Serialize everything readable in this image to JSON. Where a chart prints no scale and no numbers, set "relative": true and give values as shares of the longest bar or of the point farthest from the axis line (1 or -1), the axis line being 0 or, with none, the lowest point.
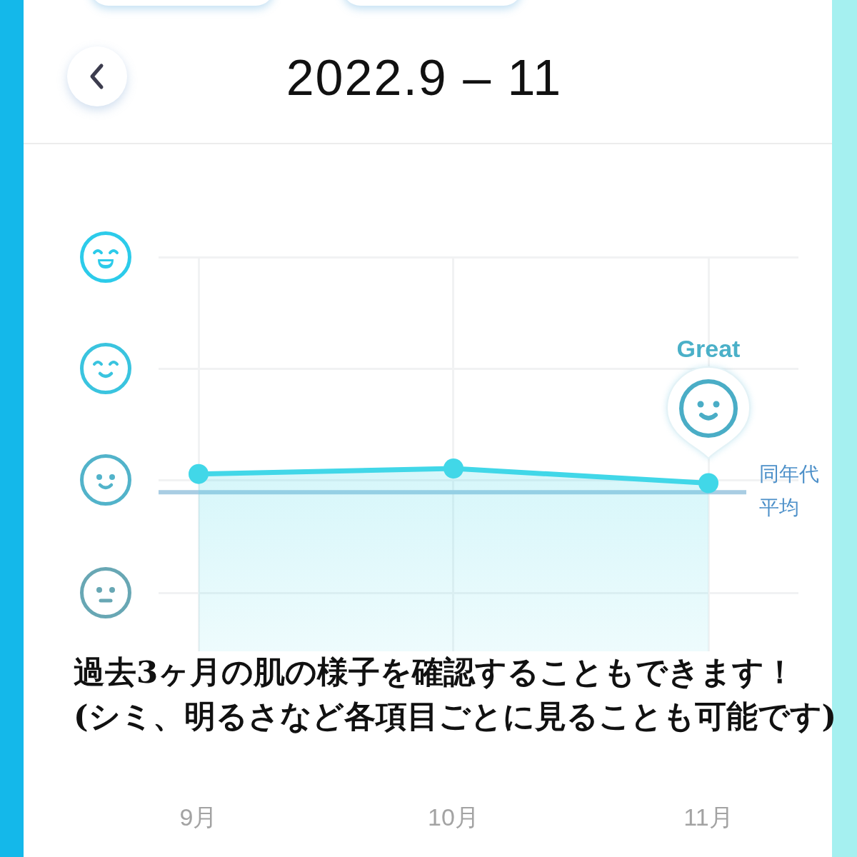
{
  "chart_data": {
    "type": "area",
    "title": "2022.9 – 11",
    "categories": [
      "9月",
      "10月",
      "11月"
    ],
    "relative": true,
    "series": [
      {
        "color": "#41d7e8",
        "values": [
          0.97,
          1,
          0.92
        ]
      }
    ],
    "marker": "circle",
    "grid": true,
    "ref_lines": [
      {
        "axis": "y",
        "value": 0.87,
        "label": "同年代平均",
        "color": "#a9cde3"
      }
    ],
    "annotations": [
      "Great",
      "過去3ヶ月の肌の様子を確認することもできます！",
      "(シミ、明るさなど各項目ごとに見ることも可能です)"
    ]
  }
}
